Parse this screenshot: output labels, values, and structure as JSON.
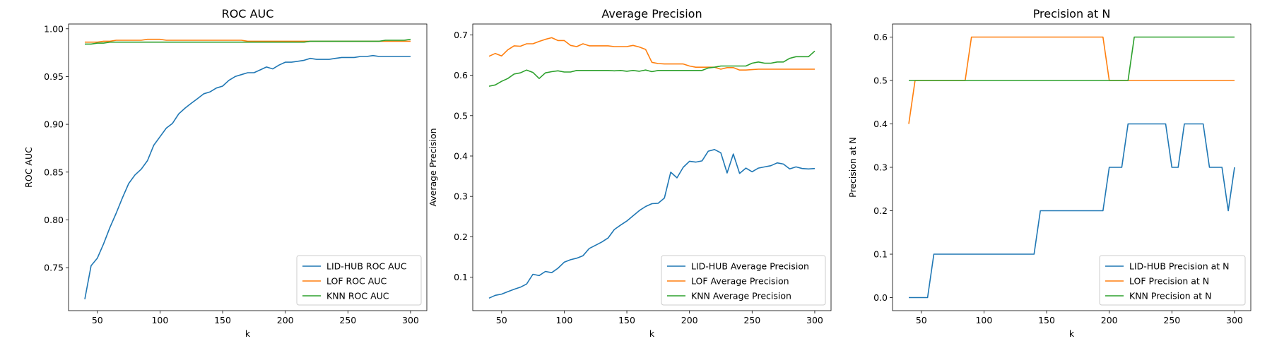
{
  "chart_data": [
    {
      "type": "line",
      "title": "ROC AUC",
      "xlabel": "k",
      "ylabel": "ROC AUC",
      "xlim": [
        27,
        313
      ],
      "ylim": [
        0.705,
        1.005
      ],
      "xticks": [
        50,
        100,
        150,
        200,
        250,
        300
      ],
      "yticks": [
        0.75,
        0.8,
        0.85,
        0.9,
        0.95,
        1.0
      ],
      "ytick_decimals": 2,
      "legend_position": "lower-right",
      "grid": false,
      "x": [
        40,
        45,
        50,
        55,
        60,
        65,
        70,
        75,
        80,
        85,
        90,
        95,
        100,
        105,
        110,
        115,
        120,
        125,
        130,
        135,
        140,
        145,
        150,
        155,
        160,
        165,
        170,
        175,
        180,
        185,
        190,
        195,
        200,
        205,
        210,
        215,
        220,
        225,
        230,
        235,
        240,
        245,
        250,
        255,
        260,
        265,
        270,
        275,
        280,
        285,
        290,
        295,
        300
      ],
      "series": [
        {
          "name": "LID-HUB ROC AUC",
          "color": "#1f77b4",
          "values": [
            0.717,
            0.752,
            0.76,
            0.775,
            0.792,
            0.807,
            0.823,
            0.838,
            0.847,
            0.853,
            0.862,
            0.878,
            0.887,
            0.896,
            0.901,
            0.911,
            0.917,
            0.922,
            0.927,
            0.932,
            0.934,
            0.938,
            0.94,
            0.946,
            0.95,
            0.952,
            0.954,
            0.954,
            0.957,
            0.96,
            0.958,
            0.962,
            0.965,
            0.965,
            0.966,
            0.967,
            0.969,
            0.968,
            0.968,
            0.968,
            0.969,
            0.97,
            0.97,
            0.97,
            0.971,
            0.971,
            0.972,
            0.971,
            0.971,
            0.971,
            0.971,
            0.971,
            0.971
          ]
        },
        {
          "name": "LOF ROC AUC",
          "color": "#ff7f0e",
          "values": [
            0.986,
            0.986,
            0.986,
            0.987,
            0.987,
            0.988,
            0.988,
            0.988,
            0.988,
            0.988,
            0.989,
            0.989,
            0.989,
            0.988,
            0.988,
            0.988,
            0.988,
            0.988,
            0.988,
            0.988,
            0.988,
            0.988,
            0.988,
            0.988,
            0.988,
            0.988,
            0.987,
            0.987,
            0.987,
            0.987,
            0.987,
            0.987,
            0.987,
            0.987,
            0.987,
            0.987,
            0.987,
            0.987,
            0.987,
            0.987,
            0.987,
            0.987,
            0.987,
            0.987,
            0.987,
            0.987,
            0.987,
            0.987,
            0.987,
            0.987,
            0.987,
            0.987,
            0.987
          ]
        },
        {
          "name": "KNN ROC AUC",
          "color": "#2ca02c",
          "values": [
            0.984,
            0.984,
            0.985,
            0.985,
            0.986,
            0.986,
            0.986,
            0.986,
            0.986,
            0.986,
            0.986,
            0.986,
            0.986,
            0.986,
            0.986,
            0.986,
            0.986,
            0.986,
            0.986,
            0.986,
            0.986,
            0.986,
            0.986,
            0.986,
            0.986,
            0.986,
            0.986,
            0.986,
            0.986,
            0.986,
            0.986,
            0.986,
            0.986,
            0.986,
            0.986,
            0.986,
            0.987,
            0.987,
            0.987,
            0.987,
            0.987,
            0.987,
            0.987,
            0.987,
            0.987,
            0.987,
            0.987,
            0.987,
            0.988,
            0.988,
            0.988,
            0.988,
            0.989
          ]
        }
      ]
    },
    {
      "type": "line",
      "title": "Average Precision",
      "xlabel": "k",
      "ylabel": "Average Precision",
      "xlim": [
        27,
        313
      ],
      "ylim": [
        0.017,
        0.727
      ],
      "xticks": [
        50,
        100,
        150,
        200,
        250,
        300
      ],
      "yticks": [
        0.1,
        0.2,
        0.3,
        0.4,
        0.5,
        0.6,
        0.7
      ],
      "ytick_decimals": 1,
      "legend_position": "lower-right",
      "grid": false,
      "x": [
        40,
        45,
        50,
        55,
        60,
        65,
        70,
        75,
        80,
        85,
        90,
        95,
        100,
        105,
        110,
        115,
        120,
        125,
        130,
        135,
        140,
        145,
        150,
        155,
        160,
        165,
        170,
        175,
        180,
        185,
        190,
        195,
        200,
        205,
        210,
        215,
        220,
        225,
        230,
        235,
        240,
        245,
        250,
        255,
        260,
        265,
        270,
        275,
        280,
        285,
        290,
        295,
        300
      ],
      "series": [
        {
          "name": "LID-HUB Average Precision",
          "color": "#1f77b4",
          "values": [
            0.048,
            0.055,
            0.058,
            0.064,
            0.07,
            0.075,
            0.083,
            0.107,
            0.104,
            0.114,
            0.111,
            0.122,
            0.137,
            0.143,
            0.147,
            0.153,
            0.171,
            0.179,
            0.187,
            0.197,
            0.218,
            0.229,
            0.239,
            0.252,
            0.265,
            0.275,
            0.282,
            0.283,
            0.296,
            0.36,
            0.346,
            0.372,
            0.387,
            0.385,
            0.388,
            0.412,
            0.416,
            0.408,
            0.358,
            0.405,
            0.357,
            0.37,
            0.361,
            0.37,
            0.373,
            0.376,
            0.383,
            0.38,
            0.368,
            0.373,
            0.369,
            0.368,
            0.369
          ]
        },
        {
          "name": "LOF Average Precision",
          "color": "#ff7f0e",
          "values": [
            0.647,
            0.654,
            0.648,
            0.663,
            0.673,
            0.672,
            0.678,
            0.678,
            0.684,
            0.689,
            0.693,
            0.686,
            0.686,
            0.674,
            0.671,
            0.678,
            0.673,
            0.673,
            0.673,
            0.673,
            0.671,
            0.671,
            0.671,
            0.674,
            0.67,
            0.664,
            0.632,
            0.629,
            0.628,
            0.628,
            0.628,
            0.628,
            0.623,
            0.62,
            0.62,
            0.62,
            0.62,
            0.615,
            0.619,
            0.619,
            0.613,
            0.613,
            0.614,
            0.615,
            0.615,
            0.615,
            0.615,
            0.615,
            0.615,
            0.615,
            0.615,
            0.615,
            0.615
          ]
        },
        {
          "name": "KNN Average Precision",
          "color": "#2ca02c",
          "values": [
            0.573,
            0.576,
            0.585,
            0.592,
            0.603,
            0.606,
            0.613,
            0.607,
            0.592,
            0.606,
            0.609,
            0.611,
            0.608,
            0.608,
            0.612,
            0.612,
            0.612,
            0.612,
            0.612,
            0.612,
            0.611,
            0.612,
            0.61,
            0.612,
            0.61,
            0.613,
            0.609,
            0.612,
            0.612,
            0.612,
            0.612,
            0.612,
            0.612,
            0.612,
            0.612,
            0.618,
            0.62,
            0.623,
            0.623,
            0.623,
            0.623,
            0.623,
            0.63,
            0.633,
            0.63,
            0.63,
            0.633,
            0.633,
            0.642,
            0.646,
            0.646,
            0.646,
            0.66
          ]
        }
      ]
    },
    {
      "type": "line",
      "title": "Precision at N",
      "xlabel": "k",
      "ylabel": "Precision at N",
      "xlim": [
        27,
        313
      ],
      "ylim": [
        -0.03,
        0.63
      ],
      "xticks": [
        50,
        100,
        150,
        200,
        250,
        300
      ],
      "yticks": [
        0.0,
        0.1,
        0.2,
        0.3,
        0.4,
        0.5,
        0.6
      ],
      "ytick_decimals": 1,
      "legend_position": "lower-right",
      "grid": false,
      "x": [
        40,
        45,
        50,
        55,
        60,
        65,
        70,
        75,
        80,
        85,
        90,
        95,
        100,
        105,
        110,
        115,
        120,
        125,
        130,
        135,
        140,
        145,
        150,
        155,
        160,
        165,
        170,
        175,
        180,
        185,
        190,
        195,
        200,
        205,
        210,
        215,
        220,
        225,
        230,
        235,
        240,
        245,
        250,
        255,
        260,
        265,
        270,
        275,
        280,
        285,
        290,
        295,
        300
      ],
      "series": [
        {
          "name": "LID-HUB Precision at N",
          "color": "#1f77b4",
          "values": [
            0.0,
            0.0,
            0.0,
            0.0,
            0.1,
            0.1,
            0.1,
            0.1,
            0.1,
            0.1,
            0.1,
            0.1,
            0.1,
            0.1,
            0.1,
            0.1,
            0.1,
            0.1,
            0.1,
            0.1,
            0.1,
            0.2,
            0.2,
            0.2,
            0.2,
            0.2,
            0.2,
            0.2,
            0.2,
            0.2,
            0.2,
            0.2,
            0.3,
            0.3,
            0.3,
            0.4,
            0.4,
            0.4,
            0.4,
            0.4,
            0.4,
            0.4,
            0.3,
            0.3,
            0.4,
            0.4,
            0.4,
            0.4,
            0.3,
            0.3,
            0.3,
            0.2,
            0.3
          ]
        },
        {
          "name": "LOF Precision at N",
          "color": "#ff7f0e",
          "values": [
            0.4,
            0.5,
            0.5,
            0.5,
            0.5,
            0.5,
            0.5,
            0.5,
            0.5,
            0.5,
            0.6,
            0.6,
            0.6,
            0.6,
            0.6,
            0.6,
            0.6,
            0.6,
            0.6,
            0.6,
            0.6,
            0.6,
            0.6,
            0.6,
            0.6,
            0.6,
            0.6,
            0.6,
            0.6,
            0.6,
            0.6,
            0.6,
            0.5,
            0.5,
            0.5,
            0.5,
            0.5,
            0.5,
            0.5,
            0.5,
            0.5,
            0.5,
            0.5,
            0.5,
            0.5,
            0.5,
            0.5,
            0.5,
            0.5,
            0.5,
            0.5,
            0.5,
            0.5
          ]
        },
        {
          "name": "KNN Precision at N",
          "color": "#2ca02c",
          "values": [
            0.5,
            0.5,
            0.5,
            0.5,
            0.5,
            0.5,
            0.5,
            0.5,
            0.5,
            0.5,
            0.5,
            0.5,
            0.5,
            0.5,
            0.5,
            0.5,
            0.5,
            0.5,
            0.5,
            0.5,
            0.5,
            0.5,
            0.5,
            0.5,
            0.5,
            0.5,
            0.5,
            0.5,
            0.5,
            0.5,
            0.5,
            0.5,
            0.5,
            0.5,
            0.5,
            0.5,
            0.6,
            0.6,
            0.6,
            0.6,
            0.6,
            0.6,
            0.6,
            0.6,
            0.6,
            0.6,
            0.6,
            0.6,
            0.6,
            0.6,
            0.6,
            0.6,
            0.6
          ]
        }
      ]
    }
  ]
}
